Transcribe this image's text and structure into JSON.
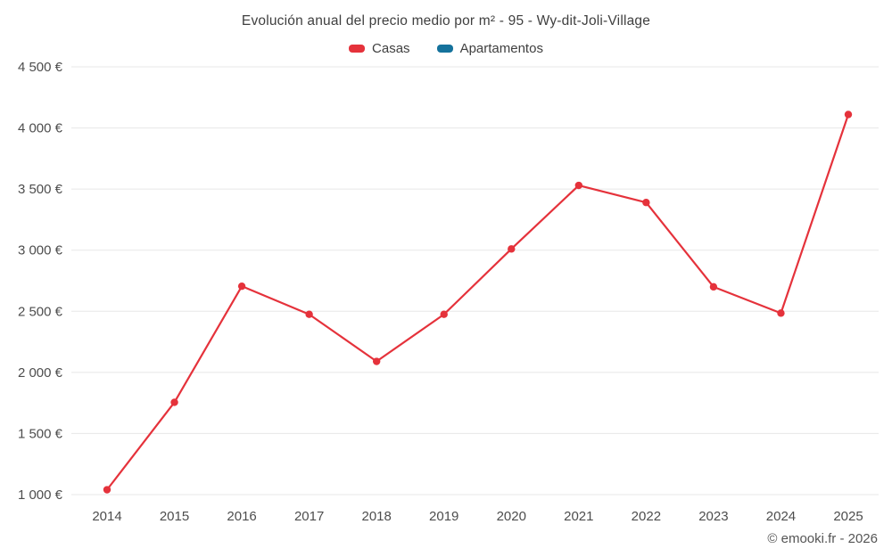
{
  "chart_data": {
    "type": "line",
    "title": "Evolución anual del precio medio por m² - 95 - Wy-dit-Joli-Village",
    "x": [
      "2014",
      "2015",
      "2016",
      "2017",
      "2018",
      "2019",
      "2020",
      "2021",
      "2022",
      "2023",
      "2024",
      "2025"
    ],
    "series": [
      {
        "name": "Casas",
        "color": "#e5323b",
        "values": [
          1040,
          1755,
          2705,
          2475,
          2090,
          2475,
          3010,
          3530,
          3390,
          2700,
          2485,
          4110
        ]
      },
      {
        "name": "Apartamentos",
        "color": "#15729c",
        "values": []
      }
    ],
    "ylabel": "",
    "xlabel": "",
    "ylim": [
      1000,
      4500
    ],
    "y_ticks": [
      {
        "value": 1000,
        "label": "1 000 €"
      },
      {
        "value": 1500,
        "label": "1 500 €"
      },
      {
        "value": 2000,
        "label": "2 000 €"
      },
      {
        "value": 2500,
        "label": "2 500 €"
      },
      {
        "value": 3000,
        "label": "3 000 €"
      },
      {
        "value": 3500,
        "label": "3 500 €"
      },
      {
        "value": 4000,
        "label": "4 000 €"
      },
      {
        "value": 4500,
        "label": "4 500 €"
      }
    ],
    "grid": "horizontal",
    "legend_position": "top",
    "grid_color": "#e7e7e7",
    "tick_label_color": "#4d4d4d"
  },
  "footer": {
    "copyright": "© emooki.fr - 2026"
  }
}
